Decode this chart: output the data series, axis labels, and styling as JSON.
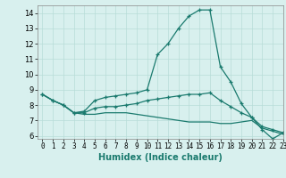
{
  "title": "",
  "xlabel": "Humidex (Indice chaleur)",
  "xlim": [
    -0.5,
    23
  ],
  "ylim": [
    5.8,
    14.5
  ],
  "xticks": [
    0,
    1,
    2,
    3,
    4,
    5,
    6,
    7,
    8,
    9,
    10,
    11,
    12,
    13,
    14,
    15,
    16,
    17,
    18,
    19,
    20,
    21,
    22,
    23
  ],
  "yticks": [
    6,
    7,
    8,
    9,
    10,
    11,
    12,
    13,
    14
  ],
  "line_color": "#1a7a6e",
  "bg_color": "#d8f0ee",
  "grid_color": "#b8dcd8",
  "line1": [
    8.7,
    8.3,
    8.0,
    7.5,
    7.6,
    8.3,
    8.5,
    8.6,
    8.7,
    8.8,
    9.0,
    11.3,
    12.0,
    13.0,
    13.8,
    14.2,
    14.2,
    10.5,
    9.5,
    8.1,
    7.2,
    6.4,
    5.8,
    6.2
  ],
  "line2": [
    8.7,
    8.3,
    8.0,
    7.5,
    7.5,
    7.8,
    7.9,
    7.9,
    8.0,
    8.1,
    8.3,
    8.4,
    8.5,
    8.6,
    8.7,
    8.7,
    8.8,
    8.3,
    7.9,
    7.5,
    7.2,
    6.6,
    6.4,
    6.2
  ],
  "line3": [
    8.7,
    8.3,
    8.0,
    7.5,
    7.4,
    7.4,
    7.5,
    7.5,
    7.5,
    7.4,
    7.3,
    7.2,
    7.1,
    7.0,
    6.9,
    6.9,
    6.9,
    6.8,
    6.8,
    6.9,
    7.0,
    6.5,
    6.3,
    6.1
  ]
}
